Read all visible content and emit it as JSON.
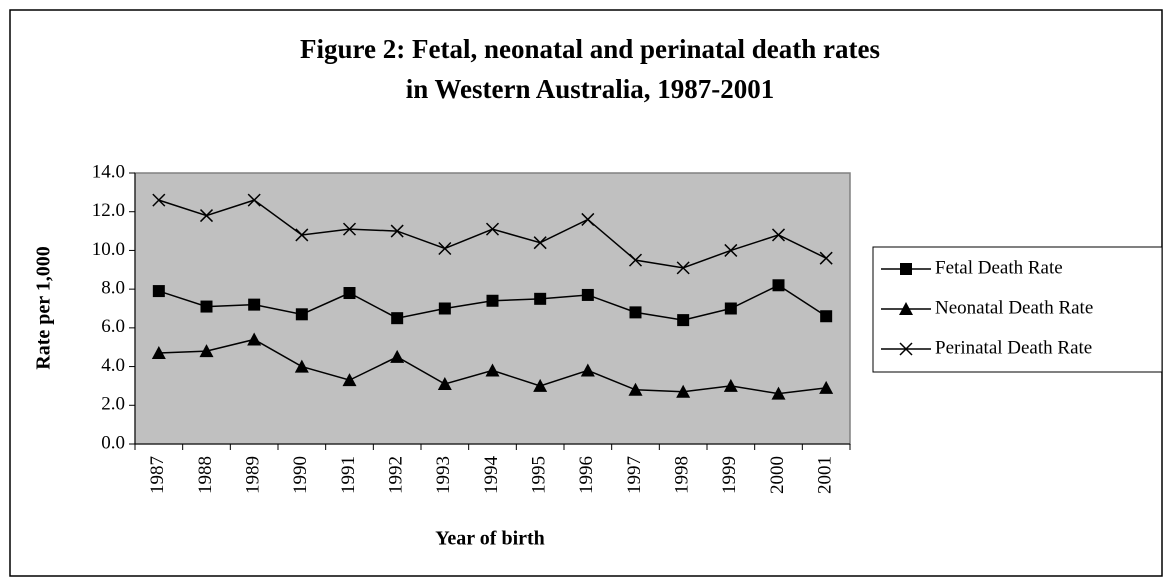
{
  "chart_data": {
    "type": "line",
    "title": [
      "Figure 2: Fetal, neonatal and perinatal death rates",
      "in Western Australia, 1987-2001"
    ],
    "x_label": "Year of birth",
    "y_label": "Rate per 1,000",
    "categories": [
      "1987",
      "1988",
      "1989",
      "1990",
      "1991",
      "1992",
      "1993",
      "1994",
      "1995",
      "1996",
      "1997",
      "1998",
      "1999",
      "2000",
      "2001"
    ],
    "series": [
      {
        "name": "Fetal Death Rate",
        "color": "#000000",
        "marker": "square",
        "values": [
          7.9,
          7.1,
          7.2,
          6.7,
          7.8,
          6.5,
          7.0,
          7.4,
          7.5,
          7.7,
          6.8,
          6.4,
          7.0,
          8.2,
          6.6
        ]
      },
      {
        "name": "Neonatal Death Rate",
        "color": "#000000",
        "marker": "triangle",
        "values": [
          4.7,
          4.8,
          5.4,
          4.0,
          3.3,
          4.5,
          3.1,
          3.8,
          3.0,
          3.8,
          2.8,
          2.7,
          3.0,
          2.6,
          2.9
        ]
      },
      {
        "name": "Perinatal Death Rate",
        "color": "#000000",
        "marker": "x",
        "values": [
          12.6,
          11.8,
          12.6,
          10.8,
          11.1,
          11.0,
          10.1,
          11.1,
          10.4,
          11.6,
          9.5,
          9.1,
          10.0,
          10.8,
          9.6
        ]
      }
    ],
    "ylim": [
      0,
      14
    ],
    "yticks": [
      {
        "value": 0,
        "label": "0.0"
      },
      {
        "value": 2,
        "label": "2.0"
      },
      {
        "value": 4,
        "label": "4.0"
      },
      {
        "value": 6,
        "label": "6.0"
      },
      {
        "value": 8,
        "label": "8.0"
      },
      {
        "value": 10,
        "label": "10.0"
      },
      {
        "value": 12,
        "label": "12.0"
      },
      {
        "value": 14,
        "label": "14.0"
      }
    ],
    "plot_background": "#c0c0c0",
    "legend": "right"
  }
}
